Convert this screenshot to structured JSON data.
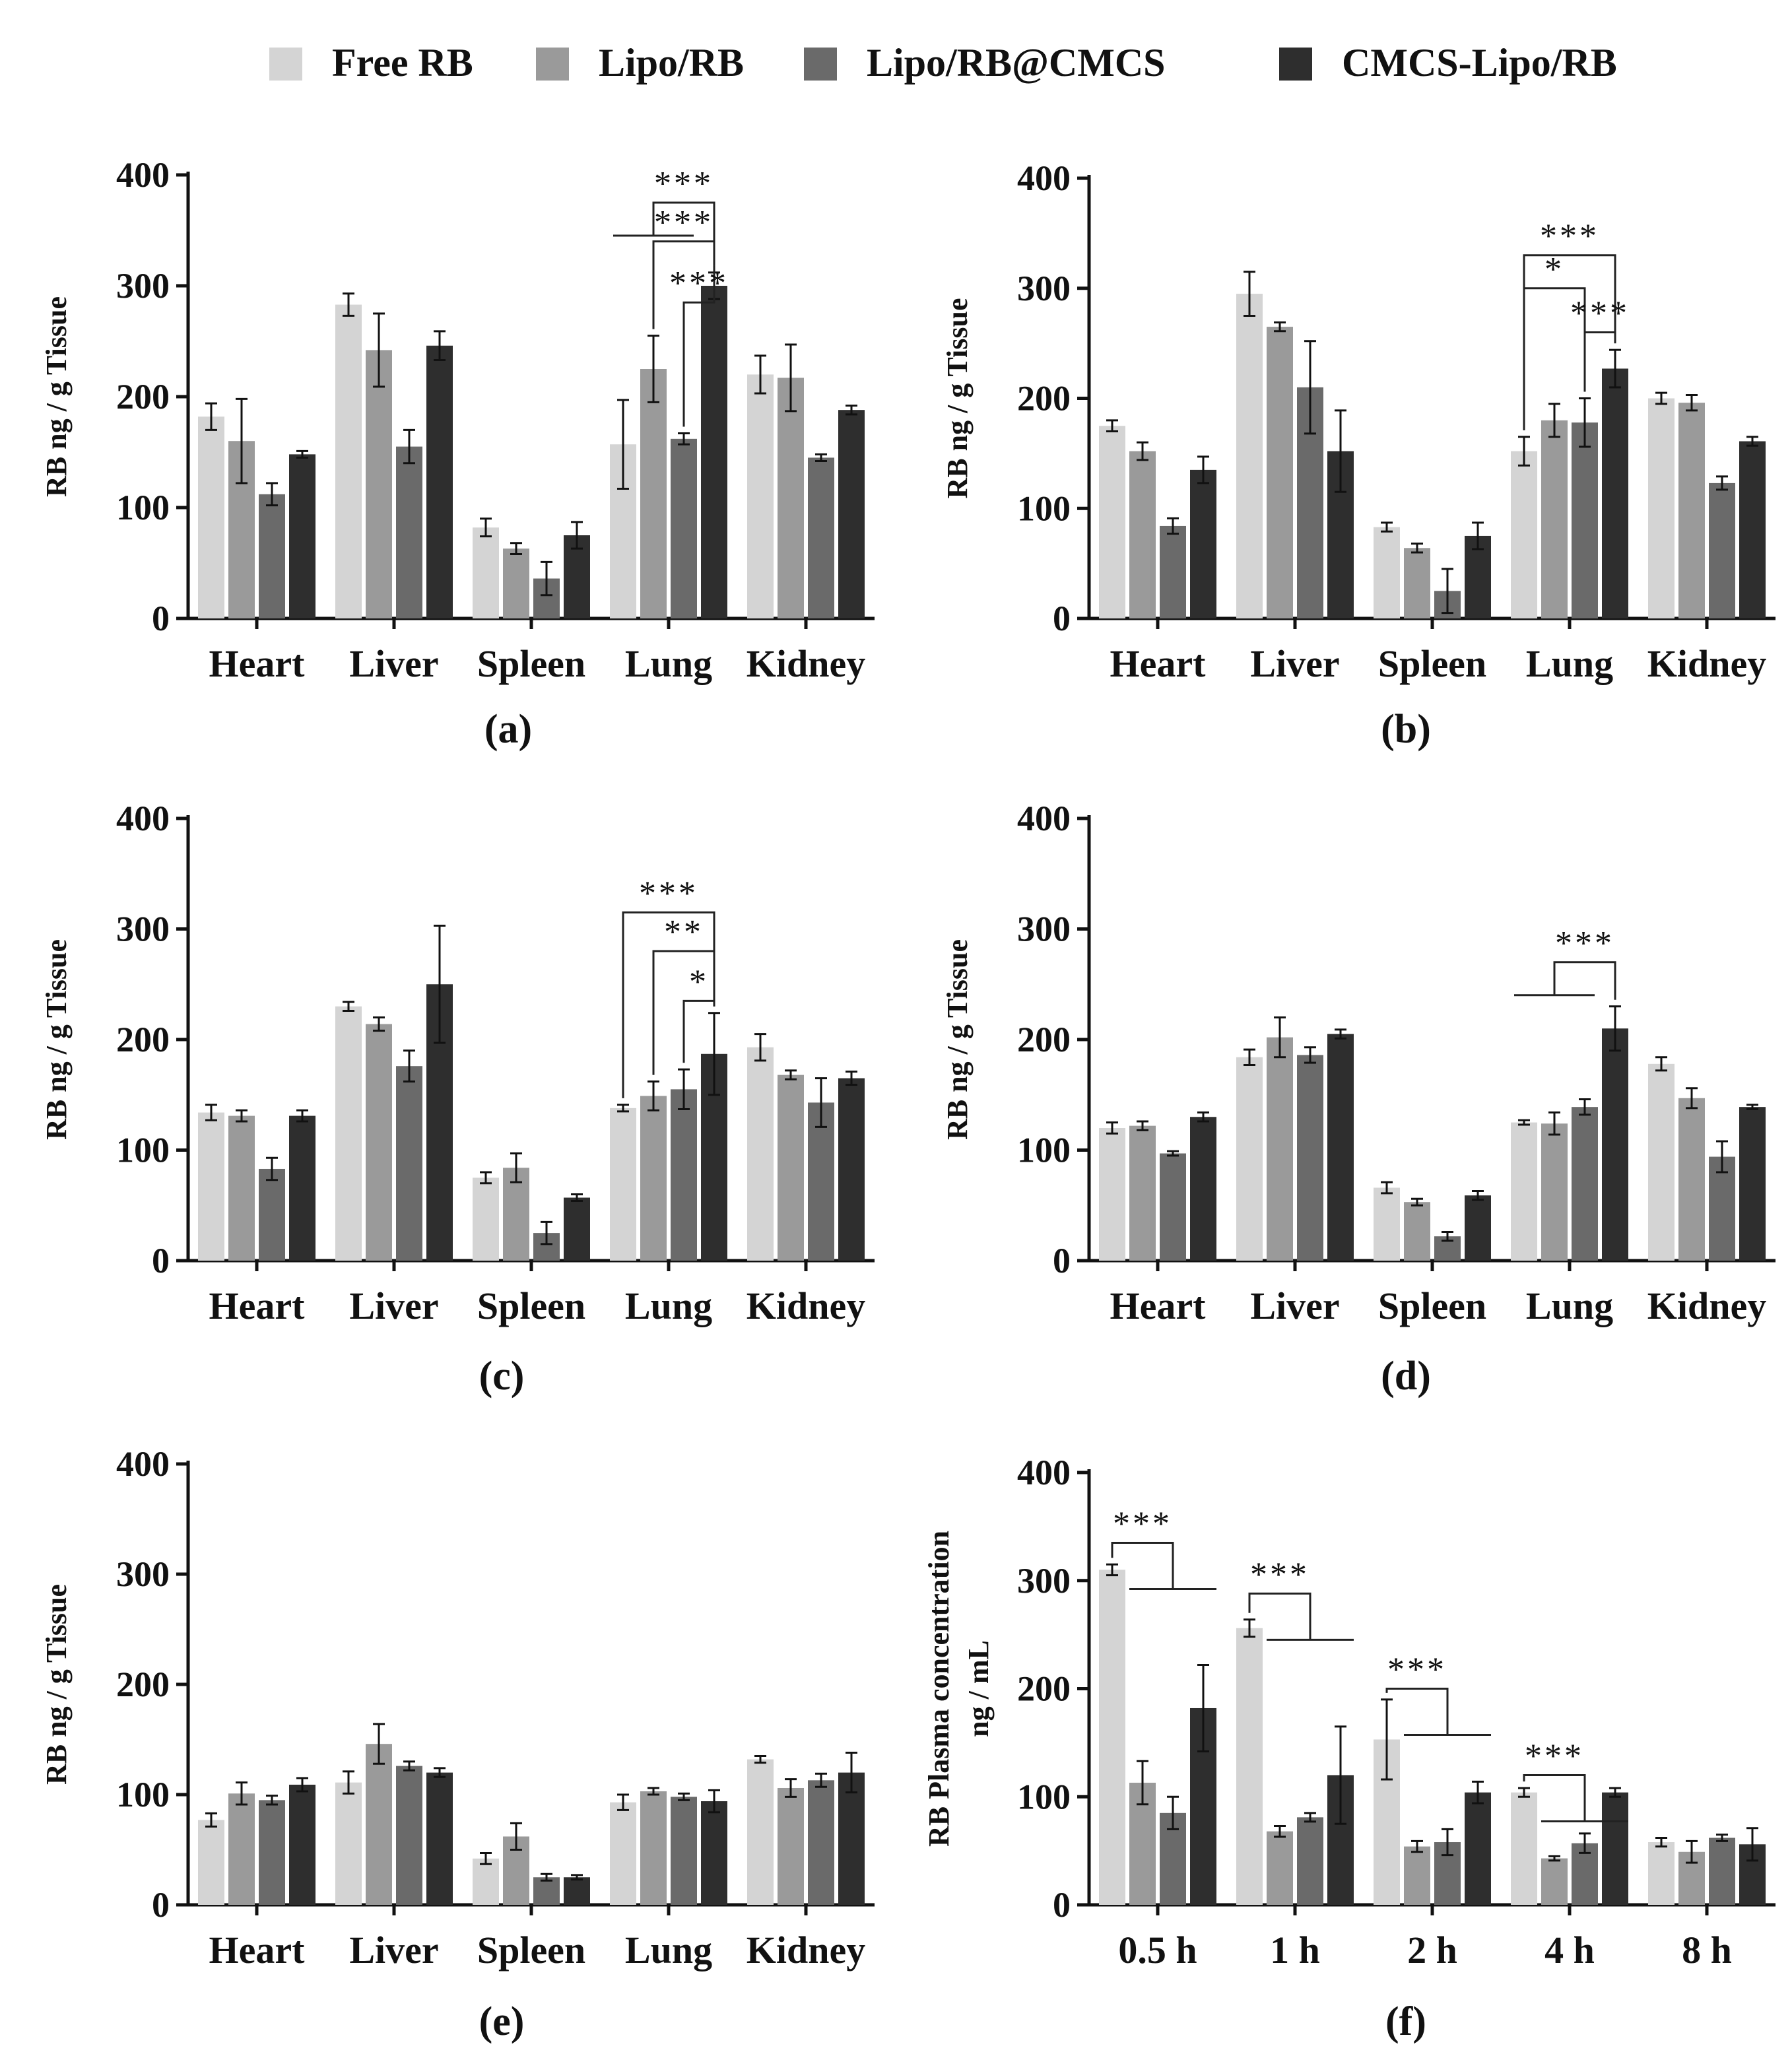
{
  "chart_data": {
    "type": "bar",
    "legend": {
      "position": "top-center",
      "entries": [
        {
          "name": "Free RB",
          "color": "#d4d4d4"
        },
        {
          "name": "Lipo/RB",
          "color": "#9a9a9a"
        },
        {
          "name": "Lipo/RB@CMCS",
          "color": "#6a6a6a"
        },
        {
          "name": "CMCS-Lipo/RB",
          "color": "#2e2e2e"
        }
      ]
    },
    "panels": [
      {
        "id": "a",
        "label": "(a)",
        "ylabel": "RB ng / g Tissue",
        "ylim": [
          0,
          400
        ],
        "yticks": [
          0,
          100,
          200,
          300,
          400
        ],
        "categories": [
          "Heart",
          "Liver",
          "Spleen",
          "Lung",
          "Kidney"
        ],
        "series": [
          {
            "name": "Free RB",
            "values": [
              182,
              283,
              82,
              157,
              220
            ],
            "errors": [
              12,
              10,
              8,
              40,
              17
            ]
          },
          {
            "name": "Lipo/RB",
            "values": [
              160,
              242,
              63,
              225,
              217
            ],
            "errors": [
              38,
              33,
              5,
              30,
              30
            ]
          },
          {
            "name": "Lipo/RB@CMCS",
            "values": [
              112,
              155,
              36,
              162,
              145
            ],
            "errors": [
              10,
              15,
              15,
              5,
              3
            ]
          },
          {
            "name": "CMCS-Lipo/RB",
            "values": [
              148,
              246,
              75,
              300,
              188
            ],
            "errors": [
              3,
              13,
              12,
              12,
              4
            ]
          }
        ],
        "significance": [
          {
            "label": "***",
            "type": "group",
            "from": [
              0,
              1,
              2
            ],
            "to": 3,
            "cat": 3,
            "level": 375
          },
          {
            "label": "***",
            "type": "pair",
            "from": 1,
            "to": 3,
            "cat": 3,
            "level": 340
          },
          {
            "label": "***",
            "type": "pair",
            "from": 2,
            "to": 3,
            "cat": 3,
            "level": 285
          }
        ]
      },
      {
        "id": "b",
        "label": "(b)",
        "ylabel": "RB ng / g Tissue",
        "ylim": [
          0,
          400
        ],
        "yticks": [
          0,
          100,
          200,
          300,
          400
        ],
        "categories": [
          "Heart",
          "Liver",
          "Spleen",
          "Lung",
          "Kidney"
        ],
        "series": [
          {
            "name": "Free RB",
            "values": [
              175,
              295,
              83,
              152,
              200
            ],
            "errors": [
              5,
              20,
              4,
              13,
              5
            ]
          },
          {
            "name": "Lipo/RB",
            "values": [
              152,
              265,
              64,
              180,
              196
            ],
            "errors": [
              8,
              4,
              4,
              15,
              7
            ]
          },
          {
            "name": "Lipo/RB@CMCS",
            "values": [
              84,
              210,
              25,
              178,
              123
            ],
            "errors": [
              7,
              42,
              20,
              22,
              6
            ]
          },
          {
            "name": "CMCS-Lipo/RB",
            "values": [
              135,
              152,
              75,
              227,
              161
            ],
            "errors": [
              12,
              37,
              12,
              17,
              4
            ]
          }
        ],
        "significance": [
          {
            "label": "***",
            "type": "pair",
            "from": 0,
            "to": 3,
            "cat": 3,
            "level": 330
          },
          {
            "label": "*",
            "type": "pair",
            "from": 0,
            "to": 2,
            "cat": 3,
            "level": 300
          },
          {
            "label": "***",
            "type": "pair",
            "from": 2,
            "to": 3,
            "cat": 3,
            "level": 260
          }
        ]
      },
      {
        "id": "c",
        "label": "(c)",
        "ylabel": "RB ng / g Tissue",
        "ylim": [
          0,
          400
        ],
        "yticks": [
          0,
          100,
          200,
          300,
          400
        ],
        "categories": [
          "Heart",
          "Liver",
          "Spleen",
          "Lung",
          "Kidney"
        ],
        "series": [
          {
            "name": "Free RB",
            "values": [
              134,
              230,
              75,
              138,
              193
            ],
            "errors": [
              7,
              4,
              5,
              3,
              12
            ]
          },
          {
            "name": "Lipo/RB",
            "values": [
              131,
              214,
              84,
              149,
              168
            ],
            "errors": [
              5,
              6,
              13,
              13,
              4
            ]
          },
          {
            "name": "Lipo/RB@CMCS",
            "values": [
              83,
              176,
              25,
              155,
              143
            ],
            "errors": [
              10,
              14,
              10,
              18,
              22
            ]
          },
          {
            "name": "CMCS-Lipo/RB",
            "values": [
              131,
              250,
              57,
              187,
              165
            ],
            "errors": [
              5,
              53,
              3,
              37,
              6
            ]
          }
        ],
        "significance": [
          {
            "label": "***",
            "type": "pair",
            "from": 0,
            "to": 3,
            "cat": 3,
            "level": 315
          },
          {
            "label": "**",
            "type": "pair",
            "from": 1,
            "to": 3,
            "cat": 3,
            "level": 280
          },
          {
            "label": "*",
            "type": "pair",
            "from": 2,
            "to": 3,
            "cat": 3,
            "level": 235
          }
        ]
      },
      {
        "id": "d",
        "label": "(d)",
        "ylabel": "RB ng / g Tissue",
        "ylim": [
          0,
          400
        ],
        "yticks": [
          0,
          100,
          200,
          300,
          400
        ],
        "categories": [
          "Heart",
          "Liver",
          "Spleen",
          "Lung",
          "Kidney"
        ],
        "series": [
          {
            "name": "Free RB",
            "values": [
              120,
              184,
              66,
              125,
              178
            ],
            "errors": [
              5,
              7,
              5,
              2,
              6
            ]
          },
          {
            "name": "Lipo/RB",
            "values": [
              122,
              202,
              53,
              124,
              147
            ],
            "errors": [
              4,
              18,
              3,
              10,
              9
            ]
          },
          {
            "name": "Lipo/RB@CMCS",
            "values": [
              97,
              186,
              22,
              139,
              94
            ],
            "errors": [
              2,
              7,
              4,
              7,
              14
            ]
          },
          {
            "name": "CMCS-Lipo/RB",
            "values": [
              130,
              205,
              59,
              210,
              139
            ],
            "errors": [
              4,
              4,
              4,
              20,
              2
            ]
          }
        ],
        "significance": [
          {
            "label": "***",
            "type": "group",
            "from": [
              0,
              1,
              2
            ],
            "to": 3,
            "cat": 3,
            "level": 270
          }
        ]
      },
      {
        "id": "e",
        "label": "(e)",
        "ylabel": "RB ng / g Tissue",
        "ylim": [
          0,
          400
        ],
        "yticks": [
          0,
          100,
          200,
          300,
          400
        ],
        "categories": [
          "Heart",
          "Liver",
          "Spleen",
          "Lung",
          "Kidney"
        ],
        "series": [
          {
            "name": "Free RB",
            "values": [
              77,
              111,
              42,
              93,
              132
            ],
            "errors": [
              6,
              10,
              5,
              7,
              3
            ]
          },
          {
            "name": "Lipo/RB",
            "values": [
              101,
              146,
              62,
              103,
              106
            ],
            "errors": [
              10,
              18,
              12,
              3,
              8
            ]
          },
          {
            "name": "Lipo/RB@CMCS",
            "values": [
              95,
              126,
              25,
              98,
              113
            ],
            "errors": [
              4,
              4,
              3,
              3,
              6
            ]
          },
          {
            "name": "CMCS-Lipo/RB",
            "values": [
              109,
              120,
              25,
              94,
              120
            ],
            "errors": [
              6,
              4,
              2,
              10,
              18
            ]
          }
        ],
        "significance": []
      },
      {
        "id": "f",
        "label": "(f)",
        "ylabel": "RB Plasma concentration ng / mL",
        "ylabel_lines": [
          "RB Plasma concentration",
          "ng / mL"
        ],
        "ylim": [
          0,
          400
        ],
        "yticks": [
          0,
          100,
          200,
          300,
          400
        ],
        "categories": [
          "0.5 h",
          "1 h",
          "2 h",
          "4 h",
          "8 h"
        ],
        "series": [
          {
            "name": "Free RB",
            "values": [
              310,
              256,
              153,
              104,
              58
            ],
            "errors": [
              5,
              8,
              37,
              4,
              4
            ]
          },
          {
            "name": "Lipo/RB",
            "values": [
              113,
              68,
              54,
              43,
              49
            ],
            "errors": [
              20,
              5,
              5,
              2,
              10
            ]
          },
          {
            "name": "Lipo/RB@CMCS",
            "values": [
              85,
              81,
              58,
              57,
              62
            ],
            "errors": [
              15,
              4,
              12,
              9,
              3
            ]
          },
          {
            "name": "CMCS-Lipo/RB",
            "values": [
              182,
              120,
              104,
              104,
              56
            ],
            "errors": [
              40,
              45,
              10,
              4,
              15
            ]
          }
        ],
        "significance": [
          {
            "label": "***",
            "type": "to_group",
            "from": 0,
            "to": [
              1,
              2,
              3
            ],
            "cat": 0,
            "level": 335
          },
          {
            "label": "***",
            "type": "to_group",
            "from": 0,
            "to": [
              1,
              2,
              3
            ],
            "cat": 1,
            "level": 288
          },
          {
            "label": "***",
            "type": "to_group",
            "from": 0,
            "to": [
              1,
              2,
              3
            ],
            "cat": 2,
            "level": 200
          },
          {
            "label": "***",
            "type": "to_group",
            "from": 0,
            "to": [
              1,
              2,
              3
            ],
            "cat": 3,
            "level": 120
          }
        ]
      }
    ]
  }
}
